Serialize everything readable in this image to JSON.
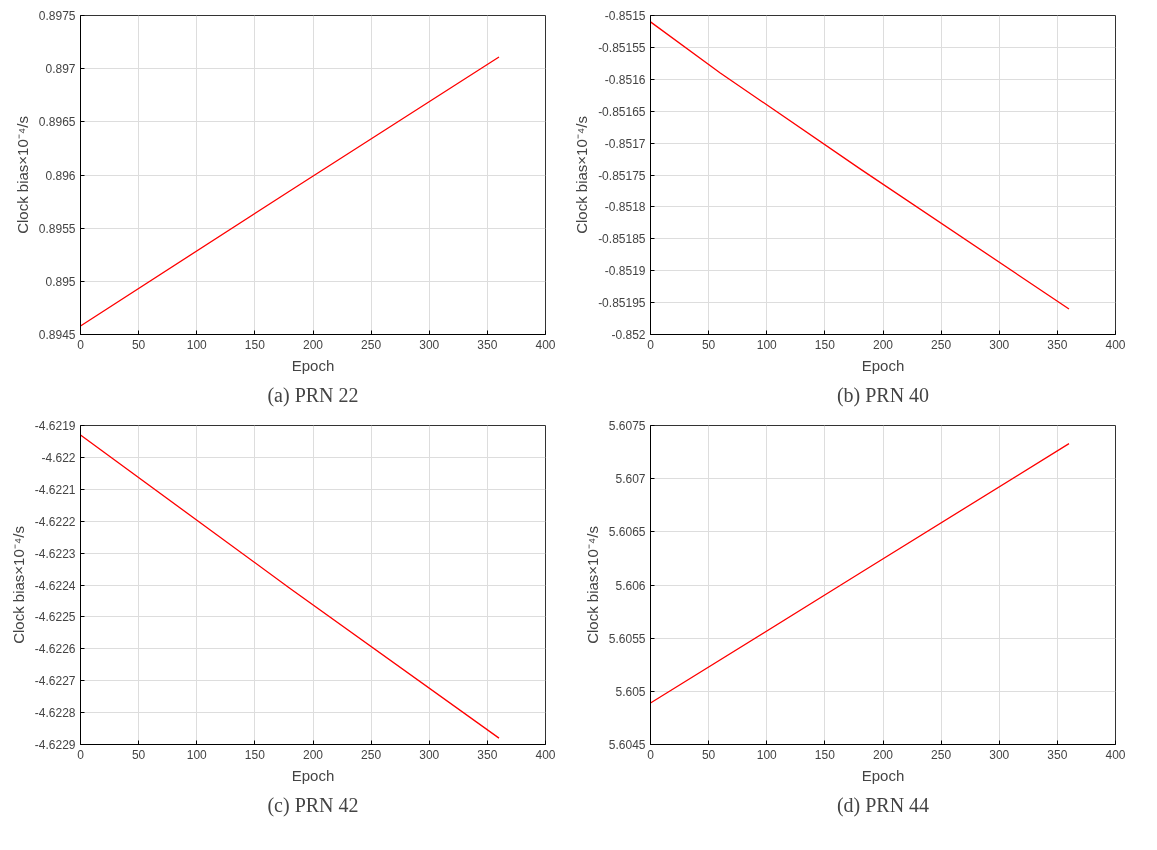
{
  "chart_data": [
    {
      "type": "line",
      "title": "(a) PRN 22",
      "xlabel": "Epoch",
      "ylabel": "Clock bias×10⁻⁴/s",
      "x": [
        0,
        180,
        360
      ],
      "series": [
        {
          "color": "#ff0000",
          "values": [
            0.89458,
            0.89585,
            0.89711
          ]
        }
      ],
      "xlim": [
        0,
        400
      ],
      "xticks": [
        0,
        50,
        100,
        150,
        200,
        250,
        300,
        350,
        400
      ],
      "ylim": [
        0.8945,
        0.8975
      ],
      "yticks": [
        0.8945,
        0.895,
        0.8955,
        0.896,
        0.8965,
        0.897,
        0.8975
      ],
      "grid": true,
      "marker": "none",
      "line_style": "solid"
    },
    {
      "type": "line",
      "title": "(b) PRN 40",
      "xlabel": "Epoch",
      "ylabel": "Clock bias×10⁻⁴/s",
      "x": [
        0,
        60,
        180,
        360
      ],
      "series": [
        {
          "color": "#ff0000",
          "values": [
            -0.85151,
            -0.85159,
            -0.85174,
            -0.85196
          ]
        }
      ],
      "xlim": [
        0,
        400
      ],
      "xticks": [
        0,
        50,
        100,
        150,
        200,
        250,
        300,
        350,
        400
      ],
      "ylim": [
        -0.852,
        -0.8515
      ],
      "yticks": [
        -0.852,
        -0.85195,
        -0.8519,
        -0.85185,
        -0.8518,
        -0.85175,
        -0.8517,
        -0.85165,
        -0.8516,
        -0.85155,
        -0.8515
      ],
      "grid": true,
      "marker": "none",
      "line_style": "solid"
    },
    {
      "type": "line",
      "title": "(c) PRN 42",
      "xlabel": "Epoch",
      "ylabel": "Clock bias×10⁻⁴/s",
      "x": [
        0,
        180,
        360
      ],
      "series": [
        {
          "color": "#ff0000",
          "values": [
            -4.62193,
            -4.62241,
            -4.62288
          ]
        }
      ],
      "xlim": [
        0,
        400
      ],
      "xticks": [
        0,
        50,
        100,
        150,
        200,
        250,
        300,
        350,
        400
      ],
      "ylim": [
        -4.6229,
        -4.6219
      ],
      "yticks": [
        -4.6229,
        -4.6228,
        -4.6227,
        -4.6226,
        -4.6225,
        -4.6224,
        -4.6223,
        -4.6222,
        -4.6221,
        -4.622,
        -4.6219
      ],
      "grid": true,
      "marker": "none",
      "line_style": "solid"
    },
    {
      "type": "line",
      "title": "(d) PRN 44",
      "xlabel": "Epoch",
      "ylabel": "Clock bias×10⁻⁴/s",
      "x": [
        0,
        180,
        360
      ],
      "series": [
        {
          "color": "#ff0000",
          "values": [
            5.60489,
            5.60611,
            5.60733
          ]
        }
      ],
      "xlim": [
        0,
        400
      ],
      "xticks": [
        0,
        50,
        100,
        150,
        200,
        250,
        300,
        350,
        400
      ],
      "ylim": [
        5.6045,
        5.6075
      ],
      "yticks": [
        5.6045,
        5.605,
        5.6055,
        5.606,
        5.6065,
        5.607,
        5.6075
      ],
      "grid": true,
      "marker": "none",
      "line_style": "solid"
    }
  ]
}
